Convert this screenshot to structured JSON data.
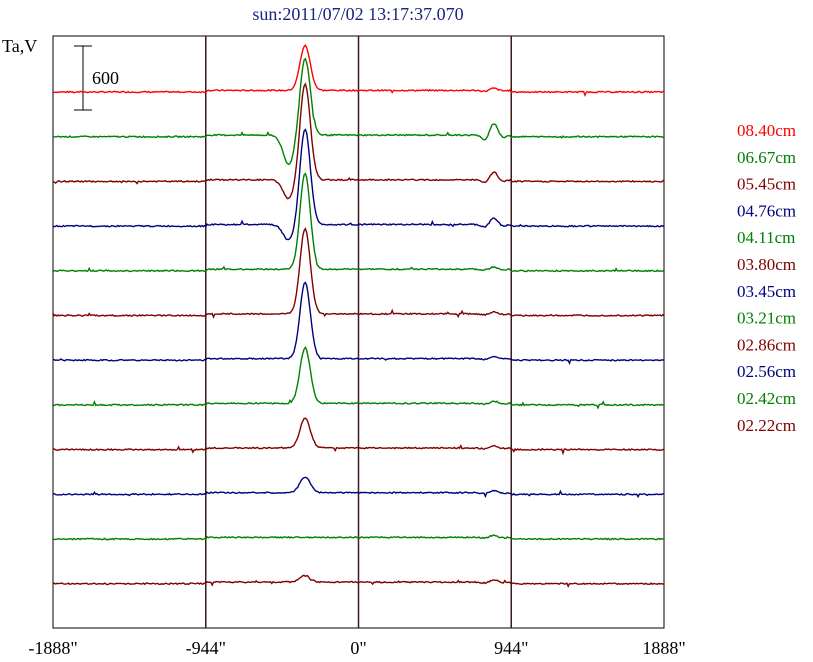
{
  "chart_data": {
    "type": "line",
    "title": "sun:2011/07/02 13:17:37.070",
    "ylabel": "Ta,V",
    "scale_bar_label": "600",
    "scale_bar_value": 600,
    "xlim": [
      -1888,
      1888
    ],
    "x_ticks": [
      {
        "value": -1888,
        "label": "-1888\""
      },
      {
        "value": -944,
        "label": "-944\""
      },
      {
        "value": 0,
        "label": "0\""
      },
      {
        "value": 944,
        "label": "944\""
      },
      {
        "value": 1888,
        "label": "1888\""
      }
    ],
    "vertical_lines": [
      -944,
      0,
      944
    ],
    "series": [
      {
        "name": "08.40cm",
        "color": "#ff0000",
        "peak": 420,
        "dip": 0
      },
      {
        "name": "06.67cm",
        "color": "#008000",
        "peak": 720,
        "dip": -280
      },
      {
        "name": "05.45cm",
        "color": "#800000",
        "peak": 900,
        "dip": -180
      },
      {
        "name": "04.76cm",
        "color": "#000080",
        "peak": 900,
        "dip": -150
      },
      {
        "name": "04.11cm",
        "color": "#008000",
        "peak": 900,
        "dip": 0
      },
      {
        "name": "03.80cm",
        "color": "#800000",
        "peak": 800,
        "dip": 0
      },
      {
        "name": "03.45cm",
        "color": "#000080",
        "peak": 720,
        "dip": 0
      },
      {
        "name": "03.21cm",
        "color": "#008000",
        "peak": 520,
        "dip": 0
      },
      {
        "name": "02.86cm",
        "color": "#800000",
        "peak": 280,
        "dip": 0
      },
      {
        "name": "02.56cm",
        "color": "#000080",
        "peak": 150,
        "dip": 0
      },
      {
        "name": "02.42cm",
        "color": "#008000",
        "peak": 0,
        "dip": 0
      },
      {
        "name": "02.22cm",
        "color": "#800000",
        "peak": 60,
        "dip": 0
      }
    ]
  }
}
